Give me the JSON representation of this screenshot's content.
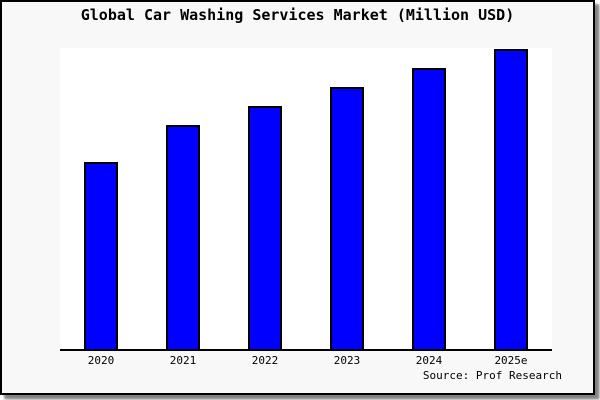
{
  "window": {
    "name": "chart-image"
  },
  "chart_data": {
    "type": "bar",
    "title": "Global Car Washing Services Market (Million USD)",
    "categories": [
      "2020",
      "2021",
      "2022",
      "2023",
      "2024",
      "2025e"
    ],
    "values": [
      62.1,
      74.4,
      80.7,
      87.2,
      93.2,
      99.7
    ],
    "value_note": "No y-axis ticks or data labels are shown; values are relative units estimated from bar heights (tallest bar 2025e ~= 100).",
    "xlabel": "",
    "ylabel": "",
    "ylim": [
      0,
      100
    ],
    "grid": false,
    "legend": false,
    "y_axis_labels_shown": false,
    "source": "Source: Prof Research",
    "colors": {
      "bar_fill": "#0000ff",
      "bar_border": "#000000",
      "plot_bg": "#ffffff",
      "background": "#f8f8f8",
      "axis": "#000000",
      "text": "#000000"
    }
  }
}
